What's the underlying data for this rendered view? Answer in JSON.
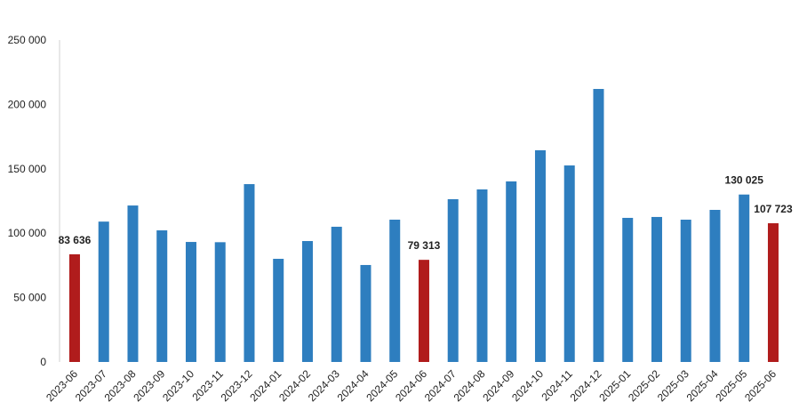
{
  "chart_data": {
    "type": "bar",
    "categories": [
      "2023-06",
      "2023-07",
      "2023-08",
      "2023-09",
      "2023-10",
      "2023-11",
      "2023-12",
      "2024-01",
      "2024-02",
      "2024-03",
      "2024-04",
      "2024-05",
      "2024-06",
      "2024-07",
      "2024-08",
      "2024-09",
      "2024-10",
      "2024-11",
      "2024-12",
      "2025-01",
      "2025-02",
      "2025-03",
      "2025-04",
      "2025-05",
      "2025-06"
    ],
    "values": [
      83636,
      109000,
      121500,
      102200,
      93200,
      93000,
      138100,
      80100,
      93900,
      105000,
      75300,
      110500,
      79313,
      126400,
      134000,
      140200,
      164400,
      152600,
      212000,
      111900,
      112600,
      110500,
      118100,
      130025,
      107723
    ],
    "value_labels": [
      "83 636",
      null,
      null,
      null,
      null,
      null,
      null,
      null,
      null,
      null,
      null,
      null,
      "79 313",
      null,
      null,
      null,
      null,
      null,
      null,
      null,
      null,
      null,
      null,
      "130 025",
      "107 723"
    ],
    "colors": [
      "#b01c1c",
      "#2e7ebf",
      "#2e7ebf",
      "#2e7ebf",
      "#2e7ebf",
      "#2e7ebf",
      "#2e7ebf",
      "#2e7ebf",
      "#2e7ebf",
      "#2e7ebf",
      "#2e7ebf",
      "#2e7ebf",
      "#b01c1c",
      "#2e7ebf",
      "#2e7ebf",
      "#2e7ebf",
      "#2e7ebf",
      "#2e7ebf",
      "#2e7ebf",
      "#2e7ebf",
      "#2e7ebf",
      "#2e7ebf",
      "#2e7ebf",
      "#2e7ebf",
      "#b01c1c"
    ],
    "ylim": [
      0,
      250000
    ],
    "yticks": [
      0,
      {
        "value": 50000,
        "label": "50 000"
      },
      {
        "value": 100000,
        "label": "100 000"
      },
      {
        "value": 150000,
        "label": "150 000"
      },
      {
        "value": 200000,
        "label": "200 000"
      },
      {
        "value": 250000,
        "label": "250 000"
      }
    ],
    "grid": false
  }
}
